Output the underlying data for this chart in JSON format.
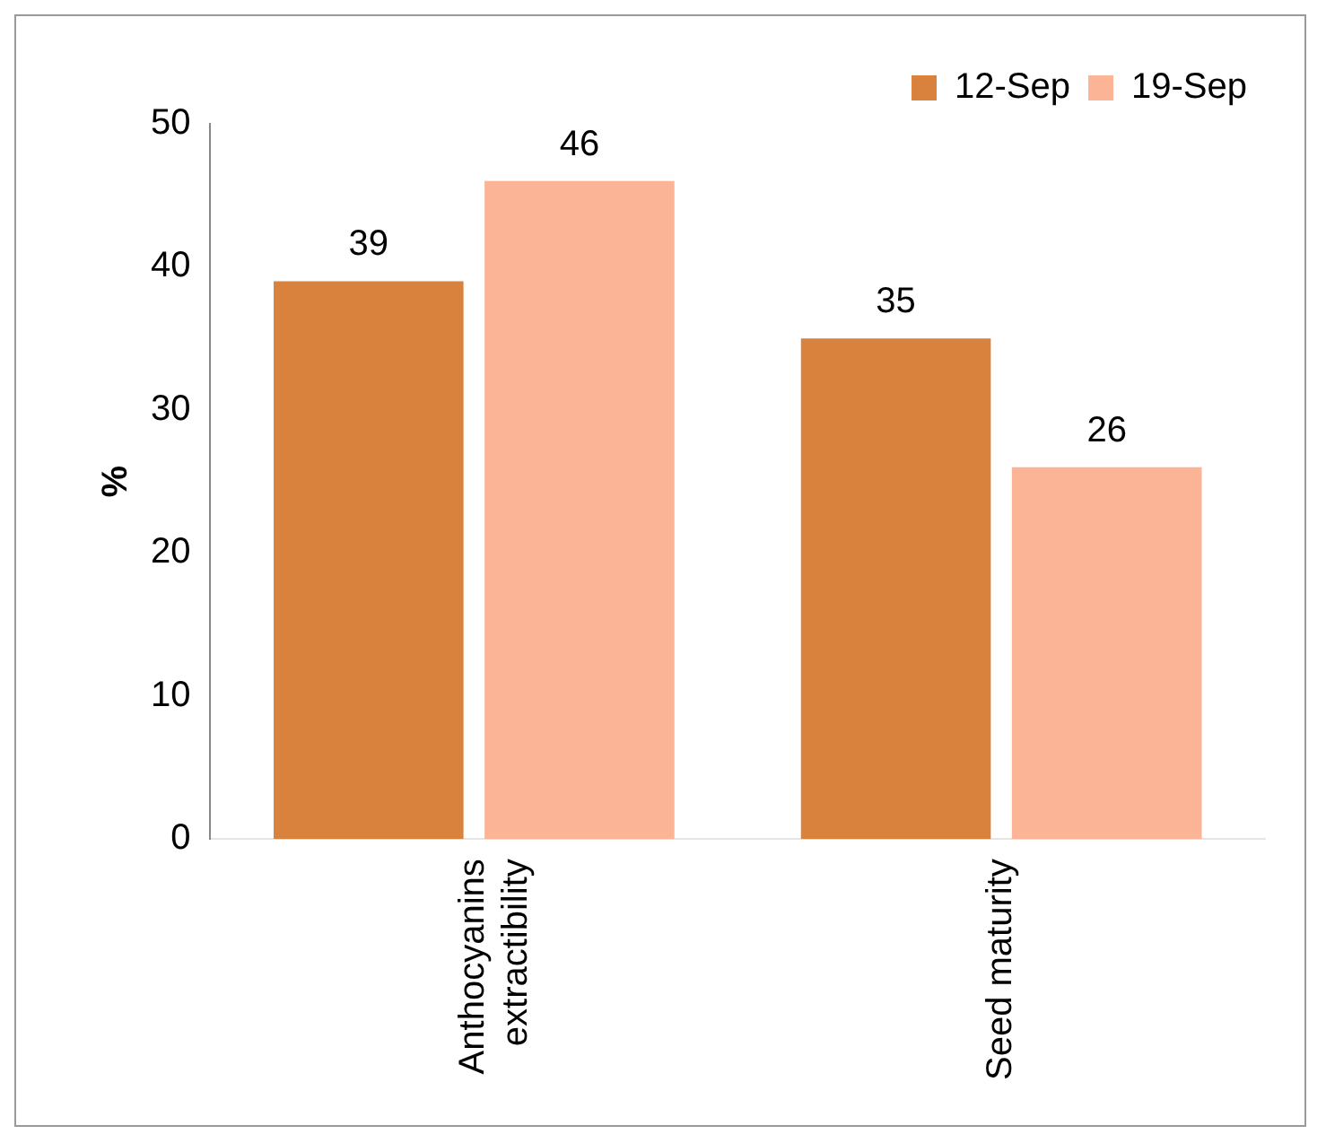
{
  "chart_data": {
    "type": "bar",
    "ylabel": "%",
    "categories": [
      "Anthocyanins extractibility",
      "Seed maturity"
    ],
    "series": [
      {
        "name": "12-Sep",
        "color": "#d9823e",
        "values": [
          39,
          35
        ]
      },
      {
        "name": "19-Sep",
        "color": "#fbb495",
        "values": [
          46,
          26
        ]
      }
    ],
    "ylim": [
      0,
      50
    ],
    "yticks": [
      0,
      10,
      20,
      30,
      40,
      50
    ],
    "grid": false,
    "legend": "top right",
    "data_labels": true
  }
}
